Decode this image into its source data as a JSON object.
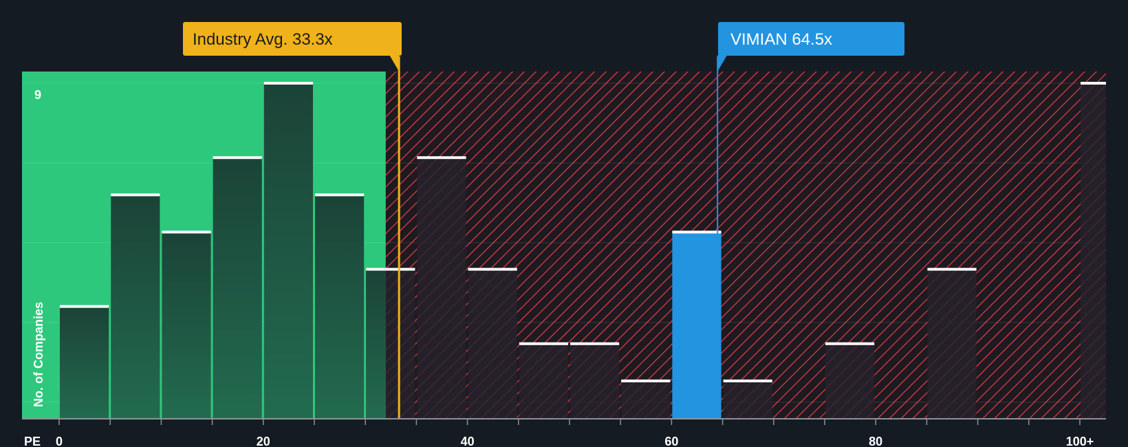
{
  "chart_data": {
    "type": "bar",
    "title": "",
    "xlabel": "PE",
    "ylabel": "No. of Companies",
    "x_ticks": [
      "0",
      "20",
      "40",
      "60",
      "80",
      "100+"
    ],
    "y_tick_label": "9",
    "ylim": [
      0,
      9
    ],
    "xlim": [
      0,
      103
    ],
    "bin_width": 5,
    "bins": [
      {
        "start": 0,
        "count": 3
      },
      {
        "start": 5,
        "count": 6
      },
      {
        "start": 10,
        "count": 5
      },
      {
        "start": 15,
        "count": 7
      },
      {
        "start": 20,
        "count": 9
      },
      {
        "start": 25,
        "count": 6
      },
      {
        "start": 30,
        "count": 4
      },
      {
        "start": 35,
        "count": 7
      },
      {
        "start": 40,
        "count": 4
      },
      {
        "start": 45,
        "count": 2
      },
      {
        "start": 50,
        "count": 2
      },
      {
        "start": 55,
        "count": 1
      },
      {
        "start": 60,
        "count": 5,
        "highlight": true
      },
      {
        "start": 65,
        "count": 1
      },
      {
        "start": 70,
        "count": 0
      },
      {
        "start": 75,
        "count": 2
      },
      {
        "start": 80,
        "count": 0
      },
      {
        "start": 85,
        "count": 4
      },
      {
        "start": 90,
        "count": 0
      },
      {
        "start": 95,
        "count": 0
      },
      {
        "start": 100,
        "count": 9
      }
    ],
    "fair_zone_upper": 32,
    "industry_avg": {
      "value": 33.3,
      "label": "Industry Avg. 33.3x"
    },
    "company": {
      "name": "VIMIAN",
      "value": 64.5,
      "label": "VIMIAN 64.5x"
    },
    "colors": {
      "background": "#151b23",
      "green_zone": "#2ec87c",
      "bar_dark": "#1a4d3e",
      "bar_hatch": "#2b2730",
      "hatch_line": "#c8363e",
      "highlight": "#2394e0",
      "industry": "#f0b21a",
      "bar_cap": "#ffffff",
      "axis": "#8c939c"
    }
  }
}
